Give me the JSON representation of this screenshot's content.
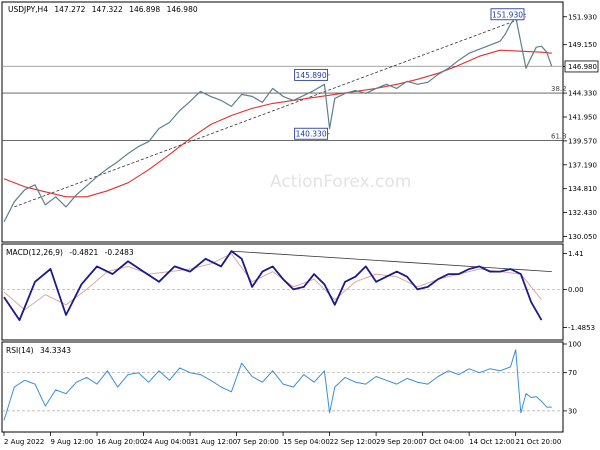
{
  "chart_data": [
    {
      "type": "line",
      "panel": "price",
      "title": "USDJPY,H4",
      "ohlc": [
        "147.272",
        "147.322",
        "146.898",
        "146.980"
      ],
      "watermark": "ActionForex.com",
      "ylim": [
        129.7,
        153.2
      ],
      "yticks": [
        "151.930",
        "149.150",
        "146.980",
        "144.330",
        "141.950",
        "139.570",
        "137.190",
        "134.810",
        "132.430",
        "130.050"
      ],
      "ytick_values": [
        151.93,
        149.15,
        146.98,
        144.33,
        141.95,
        139.57,
        137.19,
        134.81,
        132.43,
        130.05
      ],
      "current_price": "146.980",
      "x_labels": [
        "2 Aug 2022",
        "9 Aug 12:00",
        "16 Aug 20:00",
        "24 Aug 04:00",
        "31 Aug 12:00",
        "7 Sep 20:00",
        "15 Sep 04:00",
        "22 Sep 12:00",
        "29 Sep 20:00",
        "7 Oct 04:00",
        "14 Oct 12:00",
        "21 Oct 20:00"
      ],
      "x_positions": [
        0,
        9,
        18,
        27,
        36,
        45,
        54,
        63,
        72,
        81,
        90,
        99
      ],
      "x_max": 107,
      "price_series": {
        "x": [
          0,
          2,
          4,
          6,
          8,
          10,
          12,
          14,
          16,
          18,
          20,
          22,
          24,
          26,
          28,
          30,
          32,
          34,
          36,
          38,
          40,
          42,
          44,
          46,
          48,
          50,
          52,
          54,
          56,
          58,
          60,
          62,
          63,
          64,
          66,
          68,
          70,
          72,
          74,
          76,
          78,
          80,
          82,
          84,
          86,
          88,
          90,
          92,
          94,
          96,
          97,
          98,
          99,
          100,
          101,
          102,
          103,
          104,
          105,
          106
        ],
        "y": [
          131.5,
          133.5,
          134.7,
          135.2,
          133.2,
          134.0,
          133.0,
          134.2,
          135.1,
          136.0,
          136.8,
          137.5,
          138.3,
          139.0,
          139.5,
          140.8,
          141.4,
          142.6,
          143.5,
          144.5,
          144.0,
          143.6,
          143.0,
          144.2,
          144.0,
          143.4,
          144.8,
          144.0,
          143.6,
          144.1,
          144.6,
          145.2,
          140.8,
          143.8,
          144.3,
          144.6,
          144.3,
          144.8,
          145.2,
          144.8,
          145.5,
          145.2,
          145.4,
          146.2,
          146.8,
          147.6,
          148.3,
          148.7,
          149.1,
          149.5,
          150.2,
          151.2,
          151.93,
          149.4,
          146.8,
          147.9,
          148.9,
          149.0,
          148.4,
          146.98
        ]
      },
      "ma_series": {
        "x": [
          0,
          4,
          8,
          12,
          16,
          20,
          24,
          28,
          32,
          36,
          40,
          44,
          48,
          52,
          56,
          60,
          64,
          68,
          72,
          76,
          80,
          84,
          88,
          92,
          96,
          100,
          104,
          106
        ],
        "y": [
          135.8,
          135.0,
          134.5,
          134.0,
          134.0,
          134.6,
          135.4,
          136.7,
          138.2,
          139.8,
          141.2,
          142.1,
          142.8,
          143.3,
          143.6,
          143.9,
          144.2,
          144.5,
          144.8,
          145.2,
          145.7,
          146.3,
          147.1,
          148.0,
          148.6,
          148.5,
          148.4,
          148.3
        ]
      },
      "fib_levels": [
        {
          "label": "38.2",
          "value": 144.33
        },
        {
          "label": "61.8",
          "value": 139.6
        }
      ],
      "horizontal_line": 147.0,
      "annotations": [
        {
          "label": "151.930",
          "x": 101,
          "y": 151.93
        },
        {
          "label": "145.890",
          "x": 63,
          "y": 145.89
        },
        {
          "label": "140.330",
          "x": 63,
          "y": 140.33
        }
      ],
      "trendline": {
        "x": [
          2,
          101
        ],
        "y": [
          133.0,
          151.93
        ]
      }
    },
    {
      "type": "line",
      "panel": "macd",
      "title": "MACD(12,26,9)",
      "values_text": [
        "-0.4821",
        "-0.2483"
      ],
      "ylim": [
        -1.9,
        1.7
      ],
      "yticks": [
        "1.41",
        "0.00",
        "-1.4853"
      ],
      "ytick_values": [
        1.41,
        0.0,
        -1.4853
      ],
      "macd_series": {
        "x": [
          0,
          3,
          6,
          9,
          12,
          15,
          18,
          21,
          24,
          27,
          30,
          33,
          36,
          39,
          42,
          44,
          46,
          48,
          50,
          52,
          54,
          56,
          58,
          60,
          62,
          64,
          66,
          68,
          70,
          72,
          74,
          76,
          78,
          80,
          82,
          84,
          86,
          88,
          90,
          92,
          94,
          96,
          98,
          100,
          102,
          104
        ],
        "y": [
          -0.3,
          -1.2,
          0.3,
          0.8,
          -1.0,
          0.2,
          0.9,
          0.6,
          1.1,
          0.7,
          0.3,
          0.9,
          0.7,
          1.2,
          0.9,
          1.5,
          1.2,
          0.1,
          0.7,
          0.9,
          0.4,
          0.0,
          0.1,
          0.6,
          0.2,
          -0.6,
          0.3,
          0.5,
          0.9,
          0.3,
          0.5,
          0.7,
          0.5,
          0.0,
          0.1,
          0.4,
          0.6,
          0.6,
          0.8,
          0.9,
          0.7,
          0.7,
          0.8,
          0.6,
          -0.5,
          -1.2
        ]
      },
      "signal_series": {
        "x": [
          0,
          4,
          8,
          12,
          16,
          20,
          24,
          28,
          32,
          36,
          40,
          44,
          48,
          52,
          56,
          60,
          64,
          68,
          72,
          76,
          80,
          84,
          88,
          92,
          96,
          100,
          104
        ],
        "y": [
          -0.1,
          -0.8,
          -0.2,
          -0.6,
          0.0,
          0.7,
          0.9,
          0.6,
          0.7,
          0.8,
          1.0,
          1.4,
          0.3,
          0.7,
          0.1,
          0.4,
          -0.4,
          0.3,
          0.6,
          0.5,
          0.1,
          0.4,
          0.6,
          0.8,
          0.7,
          0.6,
          -0.4
        ]
      },
      "trendline": {
        "x": [
          44,
          106
        ],
        "y": [
          1.5,
          0.7
        ]
      }
    },
    {
      "type": "line",
      "panel": "rsi",
      "title": "RSI(14)",
      "values_text": [
        "34.3343"
      ],
      "ylim": [
        10,
        100
      ],
      "yticks": [
        "100",
        "70",
        "30"
      ],
      "ytick_values": [
        100,
        70,
        30
      ],
      "rsi_series": {
        "x": [
          0,
          2,
          4,
          6,
          8,
          10,
          12,
          14,
          16,
          18,
          20,
          22,
          24,
          26,
          28,
          30,
          32,
          34,
          36,
          38,
          40,
          42,
          44,
          46,
          48,
          50,
          52,
          54,
          56,
          58,
          60,
          62,
          63,
          64,
          66,
          68,
          70,
          72,
          74,
          76,
          78,
          80,
          82,
          84,
          86,
          88,
          90,
          92,
          94,
          96,
          98,
          99,
          100,
          101,
          102,
          103,
          104,
          105,
          106
        ],
        "y": [
          20,
          55,
          62,
          58,
          35,
          52,
          48,
          60,
          65,
          58,
          72,
          55,
          68,
          70,
          60,
          72,
          62,
          75,
          70,
          68,
          62,
          55,
          50,
          80,
          66,
          60,
          72,
          58,
          55,
          68,
          60,
          72,
          28,
          55,
          65,
          60,
          58,
          66,
          62,
          58,
          64,
          60,
          58,
          66,
          72,
          68,
          74,
          70,
          74,
          72,
          76,
          94,
          28,
          48,
          44,
          45,
          40,
          34,
          34
        ]
      }
    }
  ]
}
